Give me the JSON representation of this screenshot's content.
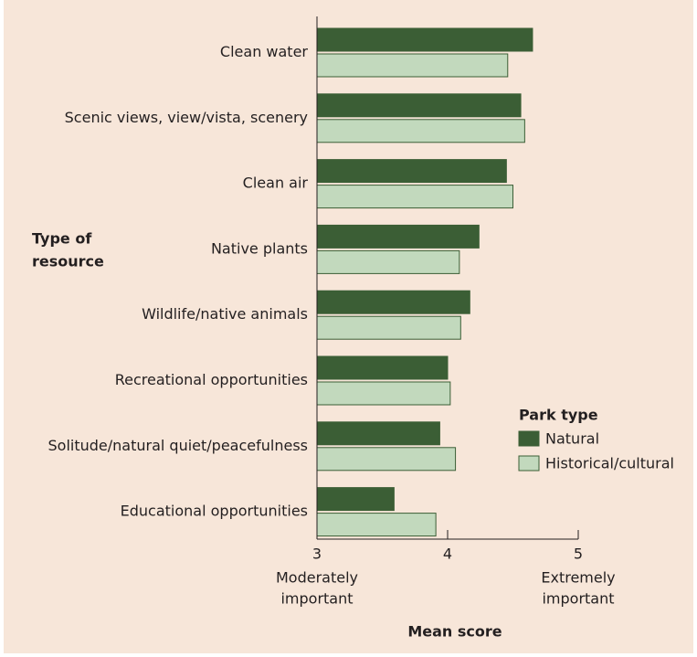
{
  "chart_data": {
    "type": "bar",
    "orientation": "horizontal",
    "y_axis_label": [
      "Type of",
      "resource"
    ],
    "x_axis_label": "Mean score",
    "categories": [
      "Clean water",
      "Scenic views, view/vista, scenery",
      "Clean air",
      "Native plants",
      "Wildlife/native animals",
      "Recreational opportunities",
      "Solitude/natural quiet/peacefulness",
      "Educational opportunities"
    ],
    "series": [
      {
        "name": "Natural",
        "color": "#3b5e35",
        "values": [
          4.65,
          4.56,
          4.45,
          4.24,
          4.17,
          4.0,
          3.94,
          3.59
        ]
      },
      {
        "name": "Historical/cultural",
        "color": "#c2d9bd",
        "values": [
          4.46,
          4.59,
          4.5,
          4.09,
          4.1,
          4.02,
          4.06,
          3.91
        ]
      }
    ],
    "xlim": [
      3,
      5
    ],
    "xticks": [
      3,
      4,
      5
    ],
    "annotations": [
      {
        "x": 3,
        "lines": [
          "Moderately",
          "important"
        ]
      },
      {
        "x": 5,
        "lines": [
          "Extremely",
          "important"
        ]
      }
    ],
    "legend_title": "Park type",
    "legend_position": "right"
  }
}
